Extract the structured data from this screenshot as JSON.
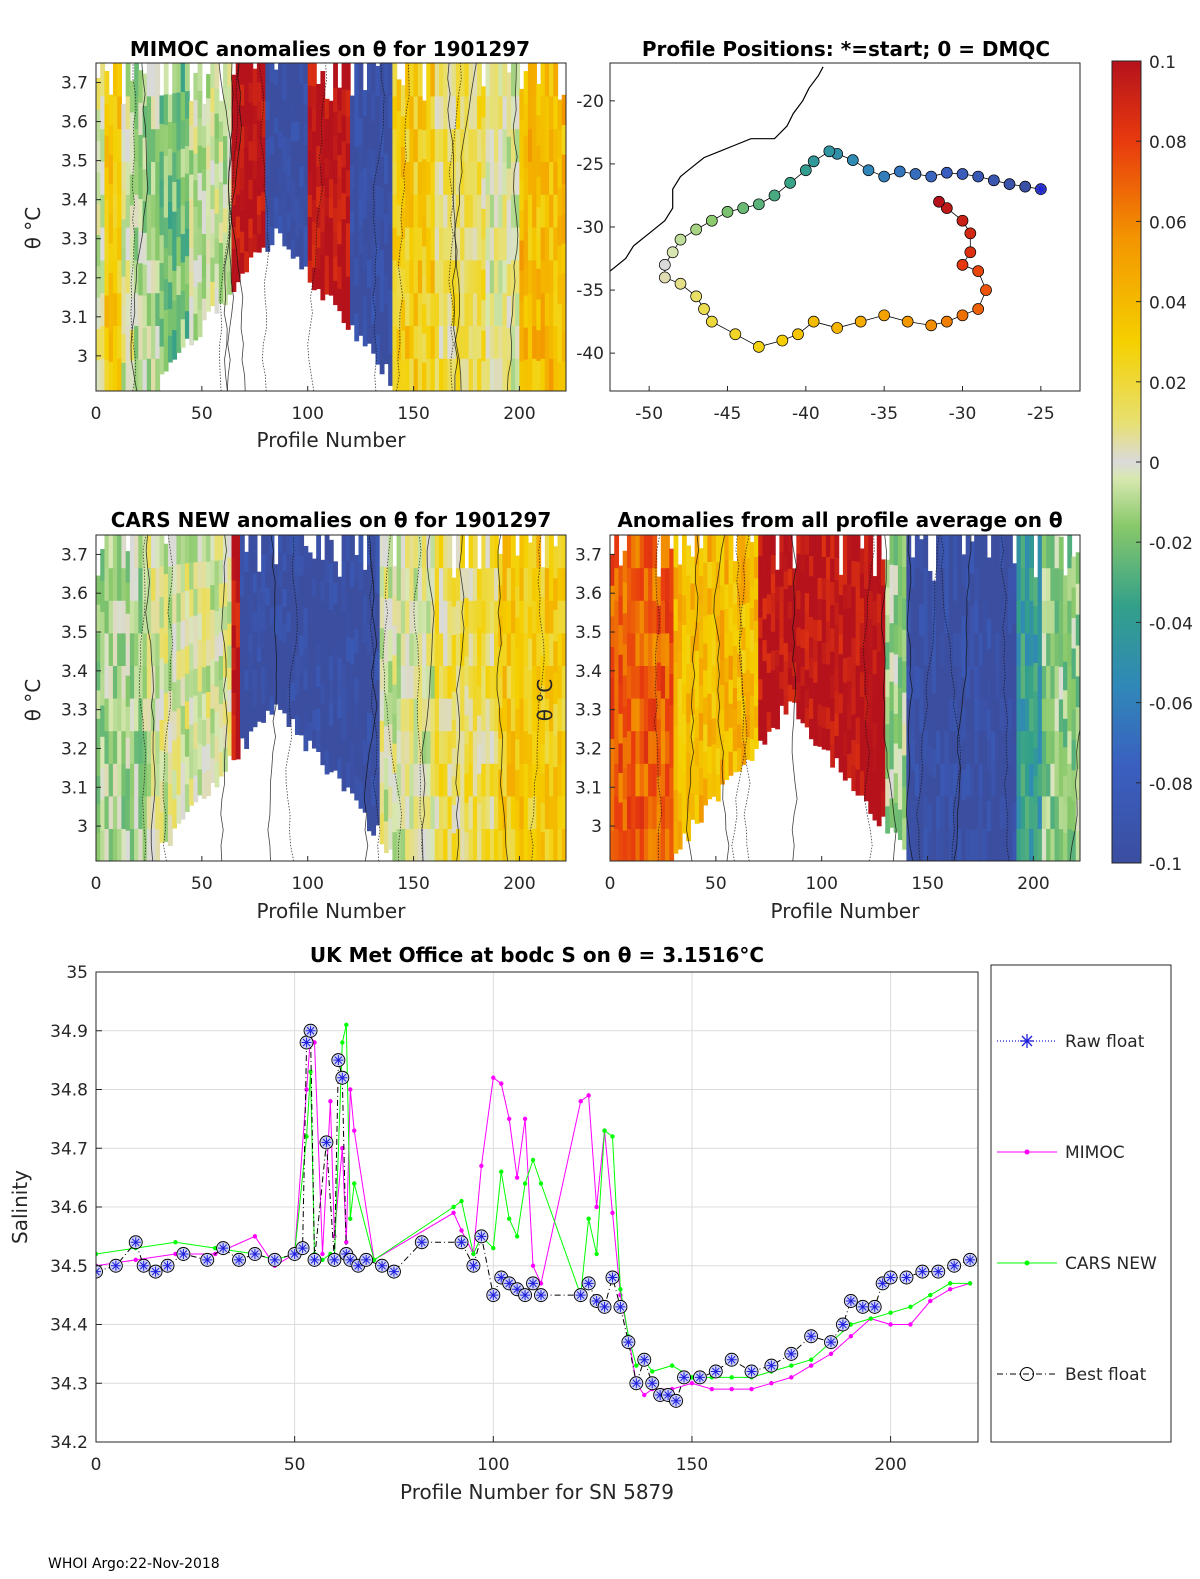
{
  "footer": "WHOI Argo:22-Nov-2018",
  "colors": {
    "axis": "#262626",
    "grid": "#dcdcdc",
    "raw_float": "#1f1fdd",
    "mimoc": "#ff00ff",
    "cars_new": "#00ff00",
    "best_float": "#000000"
  },
  "chart_data": [
    {
      "id": "mimoc_anom",
      "type": "heatmap",
      "title": "MIMOC anomalies on θ  for 1901297",
      "xlabel": "Profile Number",
      "ylabel": "θ °C",
      "xlim": [
        0,
        222
      ],
      "ylim": [
        2.91,
        3.75
      ],
      "xticks": [
        0,
        50,
        100,
        150,
        200
      ],
      "yticks": [
        3,
        3.1,
        3.2,
        3.3,
        3.4,
        3.5,
        3.6,
        3.7
      ],
      "ytick_labels": [
        "3",
        "3.1",
        "3.2",
        "3.3",
        "3.4",
        "3.5",
        "3.6",
        "3.7"
      ],
      "clim": [
        -0.1,
        0.1
      ],
      "anomaly_bands": [
        {
          "x0": 0,
          "x1": 18,
          "anomaly": 0.0
        },
        {
          "x0": 5,
          "x1": 12,
          "anomaly": 0.03
        },
        {
          "x0": 18,
          "x1": 30,
          "anomaly": -0.01
        },
        {
          "x0": 30,
          "x1": 45,
          "anomaly": -0.02
        },
        {
          "x0": 45,
          "x1": 65,
          "anomaly": -0.005
        },
        {
          "x0": 65,
          "x1": 80,
          "anomaly": 0.1
        },
        {
          "x0": 80,
          "x1": 110,
          "anomaly": -0.1
        },
        {
          "x0": 100,
          "x1": 132,
          "anomaly": 0.1
        },
        {
          "x0": 120,
          "x1": 140,
          "anomaly": -0.1
        },
        {
          "x0": 140,
          "x1": 160,
          "anomaly": 0.03
        },
        {
          "x0": 160,
          "x1": 185,
          "anomaly": 0.015
        },
        {
          "x0": 185,
          "x1": 200,
          "anomaly": 0.0
        },
        {
          "x0": 200,
          "x1": 222,
          "anomaly": 0.04
        }
      ]
    },
    {
      "id": "positions",
      "type": "scatter",
      "title": "Profile Positions: *=start; 0 = DMQC",
      "xlim": [
        -52.5,
        -22.5
      ],
      "ylim": [
        -43,
        -17
      ],
      "xticks": [
        -50,
        -45,
        -40,
        -35,
        -30,
        -25
      ],
      "yticks": [
        -20,
        -25,
        -30,
        -35,
        -40
      ],
      "track": [
        [
          -25,
          -27
        ],
        [
          -26,
          -26.8
        ],
        [
          -27,
          -26.6
        ],
        [
          -28,
          -26.3
        ],
        [
          -29,
          -26.0
        ],
        [
          -30,
          -25.8
        ],
        [
          -31,
          -25.7
        ],
        [
          -32,
          -26.0
        ],
        [
          -33,
          -25.8
        ],
        [
          -34,
          -25.6
        ],
        [
          -35,
          -26.0
        ],
        [
          -36,
          -25.5
        ],
        [
          -37,
          -24.7
        ],
        [
          -38,
          -24.2
        ],
        [
          -38.5,
          -24.0
        ],
        [
          -39.5,
          -24.8
        ],
        [
          -40,
          -25.5
        ],
        [
          -41,
          -26.5
        ],
        [
          -42,
          -27.5
        ],
        [
          -43,
          -28.2
        ],
        [
          -44,
          -28.5
        ],
        [
          -45,
          -28.8
        ],
        [
          -46,
          -29.5
        ],
        [
          -47,
          -30.2
        ],
        [
          -48,
          -31.0
        ],
        [
          -48.5,
          -32.0
        ],
        [
          -49,
          -33.0
        ],
        [
          -49,
          -34.0
        ],
        [
          -48,
          -34.5
        ],
        [
          -47,
          -35.5
        ],
        [
          -46.5,
          -36.5
        ],
        [
          -46,
          -37.5
        ],
        [
          -44.5,
          -38.5
        ],
        [
          -43,
          -39.5
        ],
        [
          -41.5,
          -39.0
        ],
        [
          -40.5,
          -38.5
        ],
        [
          -39.5,
          -37.5
        ],
        [
          -38,
          -38.0
        ],
        [
          -36.5,
          -37.5
        ],
        [
          -35,
          -37.0
        ],
        [
          -33.5,
          -37.5
        ],
        [
          -32,
          -37.8
        ],
        [
          -31,
          -37.5
        ],
        [
          -30,
          -37.0
        ],
        [
          -29,
          -36.5
        ],
        [
          -28.5,
          -35.0
        ],
        [
          -29,
          -33.5
        ],
        [
          -30,
          -33.0
        ],
        [
          -29.5,
          -32.0
        ],
        [
          -29.5,
          -30.5
        ],
        [
          -30,
          -29.5
        ],
        [
          -31,
          -28.5
        ],
        [
          -31.5,
          -28.0
        ]
      ],
      "coast": [
        [
          -52.5,
          -33.5
        ],
        [
          -51.5,
          -32.5
        ],
        [
          -51,
          -31.5
        ],
        [
          -50,
          -30.5
        ],
        [
          -49,
          -29.5
        ],
        [
          -48.5,
          -28.5
        ],
        [
          -48.5,
          -27.0
        ],
        [
          -48,
          -26.0
        ],
        [
          -47.5,
          -25.5
        ],
        [
          -46.5,
          -24.5
        ],
        [
          -45.5,
          -24.0
        ],
        [
          -44.5,
          -23.5
        ],
        [
          -43.5,
          -23.0
        ],
        [
          -42,
          -23.0
        ],
        [
          -41.2,
          -22.0
        ],
        [
          -40.8,
          -21.0
        ],
        [
          -40.2,
          -20.0
        ],
        [
          -39.8,
          -19.0
        ],
        [
          -39.2,
          -18.0
        ],
        [
          -38.9,
          -17.3
        ]
      ]
    },
    {
      "id": "colorbar",
      "type": "heatmap",
      "clim": [
        -0.1,
        0.1
      ],
      "tick_labels": [
        "0.1",
        "0.08",
        "0.06",
        "0.04",
        "0.02",
        "0",
        "-0.02",
        "-0.04",
        "-0.06",
        "-0.08",
        "-0.1"
      ]
    },
    {
      "id": "cars_anom",
      "type": "heatmap",
      "title": "CARS NEW anomalies on θ for 1901297",
      "xlabel": "Profile Number",
      "ylabel": "θ °C",
      "xlim": [
        0,
        222
      ],
      "ylim": [
        2.91,
        3.75
      ],
      "xticks": [
        0,
        50,
        100,
        150,
        200
      ],
      "yticks": [
        3,
        3.1,
        3.2,
        3.3,
        3.4,
        3.5,
        3.6,
        3.7
      ],
      "ytick_labels": [
        "3",
        "3.1",
        "3.2",
        "3.3",
        "3.4",
        "3.5",
        "3.6",
        "3.7"
      ],
      "clim": [
        -0.1,
        0.1
      ],
      "anomaly_bands": [
        {
          "x0": 0,
          "x1": 25,
          "anomaly": -0.01
        },
        {
          "x0": 25,
          "x1": 65,
          "anomaly": 0.0
        },
        {
          "x0": 65,
          "x1": 78,
          "anomaly": 0.1
        },
        {
          "x0": 68,
          "x1": 105,
          "anomaly": -0.1
        },
        {
          "x0": 105,
          "x1": 135,
          "anomaly": -0.1
        },
        {
          "x0": 135,
          "x1": 160,
          "anomaly": 0.0
        },
        {
          "x0": 160,
          "x1": 190,
          "anomaly": 0.015
        },
        {
          "x0": 190,
          "x1": 222,
          "anomaly": 0.03
        }
      ]
    },
    {
      "id": "avg_anom",
      "type": "heatmap",
      "title": "Anomalies from all profile average on θ",
      "xlabel": "Profile Number",
      "ylabel": "θ °C",
      "xlim": [
        0,
        222
      ],
      "ylim": [
        2.91,
        3.75
      ],
      "xticks": [
        0,
        50,
        100,
        150,
        200
      ],
      "yticks": [
        3,
        3.1,
        3.2,
        3.3,
        3.4,
        3.5,
        3.6,
        3.7
      ],
      "ytick_labels": [
        "3",
        "3.1",
        "3.2",
        "3.3",
        "3.4",
        "3.5",
        "3.6",
        "3.7"
      ],
      "clim": [
        -0.1,
        0.1
      ],
      "anomaly_bands": [
        {
          "x0": 0,
          "x1": 30,
          "anomaly": 0.0
        },
        {
          "x0": 0,
          "x1": 40,
          "anomaly": 0.07
        },
        {
          "x0": 30,
          "x1": 70,
          "anomaly": 0.04
        },
        {
          "x0": 70,
          "x1": 130,
          "anomaly": 0.1
        },
        {
          "x0": 130,
          "x1": 140,
          "anomaly": -0.01
        },
        {
          "x0": 140,
          "x1": 192,
          "anomaly": -0.1
        },
        {
          "x0": 192,
          "x1": 205,
          "anomaly": -0.04
        },
        {
          "x0": 205,
          "x1": 222,
          "anomaly": -0.015
        }
      ]
    },
    {
      "id": "salinity",
      "type": "line",
      "title": "UK Met Office at bodc S on θ = 3.1516°C",
      "xlabel": "Profile Number for SN 5879",
      "ylabel": "Salinity",
      "xlim": [
        0,
        222
      ],
      "ylim": [
        34.2,
        35
      ],
      "xticks": [
        0,
        50,
        100,
        150,
        200
      ],
      "yticks": [
        34.2,
        34.3,
        34.4,
        34.5,
        34.6,
        34.7,
        34.8,
        34.9,
        35
      ],
      "ytick_labels": [
        "34.2",
        "34.3",
        "34.4",
        "34.5",
        "34.6",
        "34.7",
        "34.8",
        "34.9",
        "35"
      ],
      "legend": [
        "Raw float",
        "MIMOC",
        "CARS NEW",
        "Best float"
      ],
      "series": [
        {
          "name": "Best float",
          "x": [
            0,
            5,
            10,
            12,
            15,
            18,
            22,
            28,
            32,
            36,
            40,
            45,
            50,
            52,
            53,
            54,
            55,
            58,
            60,
            61,
            62,
            63,
            64,
            66,
            68,
            72,
            75,
            82,
            92,
            95,
            97,
            100,
            102,
            104,
            106,
            108,
            110,
            112,
            122,
            124,
            126,
            128,
            130,
            132,
            134,
            136,
            138,
            140,
            142,
            144,
            146,
            148,
            152,
            156,
            160,
            165,
            170,
            175,
            180,
            185,
            188,
            190,
            193,
            196,
            198,
            200,
            204,
            208,
            212,
            216,
            220
          ],
          "y": [
            34.49,
            34.5,
            34.54,
            34.5,
            34.49,
            34.5,
            34.52,
            34.51,
            34.53,
            34.51,
            34.52,
            34.51,
            34.52,
            34.53,
            34.88,
            34.9,
            34.51,
            34.71,
            34.51,
            34.85,
            34.82,
            34.52,
            34.51,
            34.5,
            34.51,
            34.5,
            34.49,
            34.54,
            34.54,
            34.5,
            34.55,
            34.45,
            34.48,
            34.47,
            34.46,
            34.45,
            34.47,
            34.45,
            34.45,
            34.47,
            34.44,
            34.43,
            34.48,
            34.43,
            34.37,
            34.3,
            34.34,
            34.3,
            34.28,
            34.28,
            34.27,
            34.31,
            34.31,
            34.32,
            34.34,
            34.32,
            34.33,
            34.35,
            34.38,
            34.37,
            34.4,
            34.44,
            34.43,
            34.43,
            34.47,
            34.48,
            34.48,
            34.49,
            34.49,
            34.5,
            34.51
          ]
        },
        {
          "name": "MIMOC",
          "x": [
            0,
            10,
            20,
            30,
            40,
            45,
            50,
            53,
            54,
            55,
            57,
            59,
            60,
            62,
            63,
            64,
            65,
            70,
            90,
            92,
            95,
            97,
            100,
            102,
            104,
            106,
            108,
            110,
            112,
            122,
            124,
            126,
            128,
            130,
            132,
            134,
            136,
            138,
            140,
            145,
            150,
            155,
            160,
            165,
            170,
            175,
            180,
            185,
            190,
            195,
            200,
            205,
            210,
            215,
            220
          ],
          "y": [
            34.5,
            34.51,
            34.52,
            34.52,
            34.55,
            34.5,
            34.52,
            34.8,
            34.89,
            34.88,
            34.52,
            34.78,
            34.55,
            34.7,
            34.54,
            34.8,
            34.73,
            34.51,
            34.59,
            34.56,
            34.52,
            34.67,
            34.82,
            34.81,
            34.75,
            34.65,
            34.75,
            34.5,
            34.47,
            34.78,
            34.79,
            34.6,
            34.73,
            34.59,
            34.45,
            34.38,
            34.3,
            34.28,
            34.29,
            34.29,
            34.3,
            34.29,
            34.29,
            34.29,
            34.3,
            34.31,
            34.33,
            34.35,
            34.38,
            34.41,
            34.4,
            34.4,
            34.44,
            34.46,
            34.47
          ]
        },
        {
          "name": "CARS NEW",
          "x": [
            0,
            10,
            20,
            30,
            40,
            45,
            50,
            53,
            54,
            55,
            57,
            59,
            60,
            62,
            63,
            64,
            65,
            70,
            90,
            92,
            95,
            97,
            100,
            102,
            104,
            106,
            108,
            110,
            112,
            122,
            124,
            126,
            128,
            130,
            132,
            134,
            136,
            138,
            140,
            145,
            150,
            155,
            160,
            165,
            170,
            175,
            180,
            185,
            190,
            195,
            200,
            205,
            210,
            215,
            220
          ],
          "y": [
            34.52,
            34.53,
            34.54,
            34.53,
            34.52,
            34.51,
            34.52,
            34.72,
            34.83,
            34.52,
            34.51,
            34.52,
            34.51,
            34.88,
            34.91,
            34.58,
            34.64,
            34.51,
            34.6,
            34.61,
            34.52,
            34.55,
            34.53,
            34.66,
            34.58,
            34.55,
            34.64,
            34.68,
            34.64,
            34.45,
            34.58,
            34.52,
            34.73,
            34.72,
            34.46,
            34.38,
            34.33,
            34.34,
            34.32,
            34.33,
            34.31,
            34.31,
            34.31,
            34.31,
            34.32,
            34.33,
            34.34,
            34.37,
            34.4,
            34.41,
            34.42,
            34.43,
            34.45,
            34.47,
            34.47
          ]
        }
      ]
    }
  ]
}
